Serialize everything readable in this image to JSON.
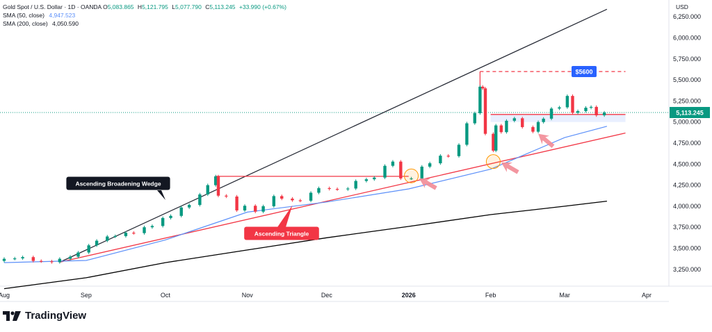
{
  "legend": {
    "symbol": "Gold Spot / U.S. Dollar · 1D · OANDA",
    "open_label": "O",
    "open": "5,083.865",
    "high_label": "H",
    "high": "5,121.795",
    "low_label": "L",
    "low": "5,077.790",
    "close_label": "C",
    "close": "5,113.245",
    "change": "+33.990 (+0.67%)",
    "sma50_label": "SMA (50, close)",
    "sma50_value": "4,947.523",
    "sma200_label": "SMA (200, close)",
    "sma200_value": "4,050.590"
  },
  "currency": "USD",
  "brand": {
    "name": "TradingView",
    "logo_icon": "tradingview-logo-icon"
  },
  "colors": {
    "up": "#089981",
    "down": "#f23645",
    "sma50": "#5b8ff9",
    "sma200": "#000000",
    "trend": "#f23645",
    "price_tag": "#089981",
    "target_tag": "#2962ff"
  },
  "chart_data": {
    "type": "candlestick",
    "title": "Gold Spot / U.S. Dollar · 1D · OANDA",
    "ylim": [
      3050,
      6450
    ],
    "y_ticks": [
      "6,250.000",
      "6,000.000",
      "5,750.000",
      "5,500.000",
      "5,250.000",
      "5,000.000",
      "4,750.000",
      "4,500.000",
      "4,250.000",
      "4,000.000",
      "3,750.000",
      "3,500.000",
      "3,250.000"
    ],
    "y_tick_values": [
      6250,
      6000,
      5750,
      5500,
      5250,
      5000,
      4750,
      4500,
      4250,
      4000,
      3750,
      3500,
      3250
    ],
    "x_labels": [
      "Aug",
      "Sep",
      "Oct",
      "Nov",
      "Dec",
      "2026",
      "Feb",
      "Mar",
      "Apr"
    ],
    "x_label_dates": [
      "2025-08-01",
      "2025-09-01",
      "2025-10-01",
      "2025-11-01",
      "2025-12-01",
      "2026-01-01",
      "2026-02-01",
      "2026-03-01",
      "2026-04-01"
    ],
    "x_range": [
      "2025-08-01",
      "2026-04-05"
    ],
    "current_price": "5,113.245",
    "current_value": 5113.245,
    "candles": [
      [
        "2025-08-01",
        3350,
        3375
      ],
      [
        "2025-08-05",
        3375,
        3380
      ],
      [
        "2025-08-08",
        3380,
        3395
      ],
      [
        "2025-08-12",
        3395,
        3350
      ],
      [
        "2025-08-15",
        3350,
        3345
      ],
      [
        "2025-08-19",
        3345,
        3335
      ],
      [
        "2025-08-22",
        3335,
        3375
      ],
      [
        "2025-08-26",
        3375,
        3400
      ],
      [
        "2025-08-29",
        3400,
        3450
      ],
      [
        "2025-09-02",
        3450,
        3535
      ],
      [
        "2025-09-05",
        3535,
        3590
      ],
      [
        "2025-09-09",
        3590,
        3640
      ],
      [
        "2025-09-12",
        3640,
        3645
      ],
      [
        "2025-09-16",
        3645,
        3685
      ],
      [
        "2025-09-19",
        3685,
        3680
      ],
      [
        "2025-09-23",
        3680,
        3750
      ],
      [
        "2025-09-26",
        3750,
        3765
      ],
      [
        "2025-09-30",
        3765,
        3860
      ],
      [
        "2025-10-03",
        3860,
        3885
      ],
      [
        "2025-10-07",
        3885,
        3985
      ],
      [
        "2025-10-10",
        3985,
        4015
      ],
      [
        "2025-10-14",
        4015,
        4140
      ],
      [
        "2025-10-17",
        4140,
        4250
      ],
      [
        "2025-10-20",
        4250,
        4355
      ],
      [
        "2025-10-21",
        4355,
        4125
      ],
      [
        "2025-10-24",
        4125,
        4115
      ],
      [
        "2025-10-28",
        4115,
        3950
      ],
      [
        "2025-10-31",
        3950,
        4005
      ],
      [
        "2025-11-04",
        4005,
        3935
      ],
      [
        "2025-11-07",
        3935,
        4000
      ],
      [
        "2025-11-11",
        4000,
        4120
      ],
      [
        "2025-11-14",
        4120,
        4090
      ],
      [
        "2025-11-18",
        4090,
        4070
      ],
      [
        "2025-11-21",
        4070,
        4065
      ],
      [
        "2025-11-25",
        4065,
        4160
      ],
      [
        "2025-11-28",
        4160,
        4215
      ],
      [
        "2025-12-02",
        4215,
        4205
      ],
      [
        "2025-12-05",
        4205,
        4200
      ],
      [
        "2025-12-09",
        4200,
        4210
      ],
      [
        "2025-12-12",
        4210,
        4300
      ],
      [
        "2025-12-16",
        4300,
        4320
      ],
      [
        "2025-12-19",
        4320,
        4340
      ],
      [
        "2025-12-23",
        4340,
        4480
      ],
      [
        "2025-12-26",
        4480,
        4530
      ],
      [
        "2025-12-29",
        4530,
        4330
      ],
      [
        "2026-01-02",
        4330,
        4330
      ],
      [
        "2026-01-06",
        4330,
        4470
      ],
      [
        "2026-01-09",
        4470,
        4510
      ],
      [
        "2026-01-13",
        4510,
        4600
      ],
      [
        "2026-01-16",
        4600,
        4595
      ],
      [
        "2026-01-20",
        4595,
        4730
      ],
      [
        "2026-01-23",
        4730,
        4985
      ],
      [
        "2026-01-26",
        4985,
        5105
      ],
      [
        "2026-01-28",
        5105,
        5420
      ],
      [
        "2026-01-29",
        5420,
        5400
      ],
      [
        "2026-01-30",
        5400,
        4860
      ],
      [
        "2026-02-02",
        4860,
        4660
      ],
      [
        "2026-02-03",
        4660,
        4960
      ],
      [
        "2026-02-05",
        4960,
        4880
      ],
      [
        "2026-02-07",
        4880,
        5015
      ],
      [
        "2026-02-10",
        5015,
        5045
      ],
      [
        "2026-02-13",
        5045,
        4940
      ],
      [
        "2026-02-17",
        4940,
        4885
      ],
      [
        "2026-02-19",
        4885,
        5000
      ],
      [
        "2026-02-21",
        5000,
        5040
      ],
      [
        "2026-02-24",
        5040,
        5160
      ],
      [
        "2026-02-27",
        5160,
        5175
      ],
      [
        "2026-03-02",
        5175,
        5310
      ],
      [
        "2026-03-04",
        5310,
        5110
      ],
      [
        "2026-03-06",
        5110,
        5130
      ],
      [
        "2026-03-09",
        5130,
        5170
      ],
      [
        "2026-03-11",
        5170,
        5180
      ],
      [
        "2026-03-13",
        5180,
        5080
      ],
      [
        "2026-03-16",
        5080,
        5113
      ]
    ],
    "series": [
      {
        "name": "SMA (50, close)",
        "points": [
          [
            "2025-08-01",
            3330
          ],
          [
            "2025-09-01",
            3355
          ],
          [
            "2025-10-01",
            3600
          ],
          [
            "2025-11-01",
            3930
          ],
          [
            "2025-12-01",
            4050
          ],
          [
            "2026-01-01",
            4205
          ],
          [
            "2026-02-01",
            4440
          ],
          [
            "2026-03-01",
            4815
          ],
          [
            "2026-03-17",
            4950
          ]
        ]
      },
      {
        "name": "SMA (200, close)",
        "points": [
          [
            "2025-08-01",
            3020
          ],
          [
            "2025-09-01",
            3150
          ],
          [
            "2025-10-01",
            3330
          ],
          [
            "2025-11-01",
            3480
          ],
          [
            "2025-12-01",
            3625
          ],
          [
            "2026-01-01",
            3760
          ],
          [
            "2026-02-01",
            3900
          ],
          [
            "2026-03-01",
            4000
          ],
          [
            "2026-03-17",
            4060
          ]
        ]
      }
    ],
    "annotations": {
      "wedge_label": "Ascending Broadening Wedge",
      "triangle_label": "Ascending Triangle",
      "target_label": "$5600",
      "target_value": 5600,
      "resistance_value": 4355,
      "upper_wedge_line": [
        [
          "2025-08-22",
          3335
        ],
        [
          "2026-03-17",
          6340
        ]
      ],
      "lower_trend_line": [
        [
          "2025-08-22",
          3335
        ],
        [
          "2026-03-24",
          4870
        ]
      ],
      "resistance_line": [
        [
          "2025-10-20",
          4355
        ],
        [
          "2026-01-01",
          4355
        ]
      ],
      "consolidation_zone": [
        [
          "2026-02-01",
          5090
        ],
        [
          "2026-03-24",
          5000
        ]
      ]
    }
  }
}
